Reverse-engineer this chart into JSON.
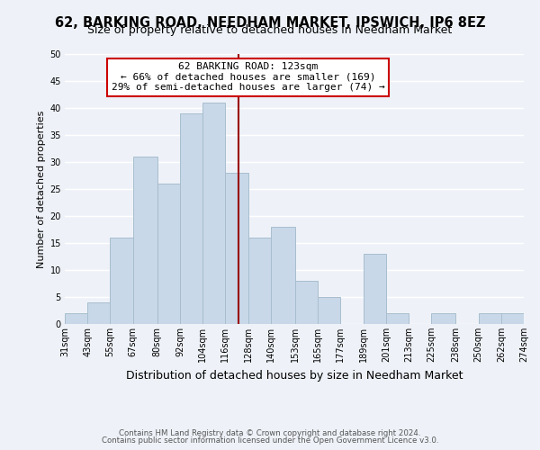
{
  "title": "62, BARKING ROAD, NEEDHAM MARKET, IPSWICH, IP6 8EZ",
  "subtitle": "Size of property relative to detached houses in Needham Market",
  "xlabel": "Distribution of detached houses by size in Needham Market",
  "ylabel": "Number of detached properties",
  "bar_color": "#c8d8e8",
  "bar_edge_color": "#a8bece",
  "background_color": "#eef2f8",
  "grid_color": "#ffffff",
  "bins": [
    31,
    43,
    55,
    67,
    80,
    92,
    104,
    116,
    128,
    140,
    153,
    165,
    177,
    189,
    201,
    213,
    225,
    238,
    250,
    262,
    274
  ],
  "counts": [
    2,
    4,
    16,
    31,
    26,
    39,
    41,
    28,
    16,
    18,
    8,
    5,
    0,
    13,
    2,
    0,
    2,
    0,
    2,
    2
  ],
  "tick_labels": [
    "31sqm",
    "43sqm",
    "55sqm",
    "67sqm",
    "80sqm",
    "92sqm",
    "104sqm",
    "116sqm",
    "128sqm",
    "140sqm",
    "153sqm",
    "165sqm",
    "177sqm",
    "189sqm",
    "201sqm",
    "213sqm",
    "225sqm",
    "238sqm",
    "250sqm",
    "262sqm",
    "274sqm"
  ],
  "vline_x": 123,
  "vline_color": "#990000",
  "annotation_title": "62 BARKING ROAD: 123sqm",
  "annotation_line1": "← 66% of detached houses are smaller (169)",
  "annotation_line2": "29% of semi-detached houses are larger (74) →",
  "annotation_box_color": "#ffffff",
  "annotation_box_edge": "#cc0000",
  "footer1": "Contains HM Land Registry data © Crown copyright and database right 2024.",
  "footer2": "Contains public sector information licensed under the Open Government Licence v3.0.",
  "ylim": [
    0,
    50
  ],
  "title_fontsize": 10.5,
  "subtitle_fontsize": 9,
  "xlabel_fontsize": 9,
  "ylabel_fontsize": 8,
  "tick_fontsize": 7,
  "footer_fontsize": 6.2,
  "annot_fontsize": 8
}
